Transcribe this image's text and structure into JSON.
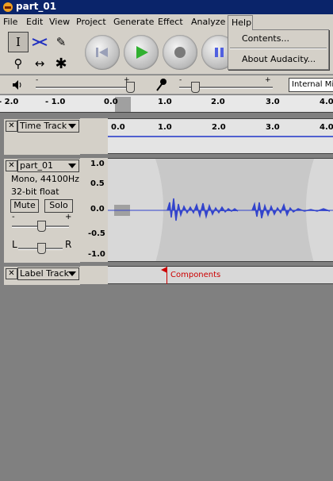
{
  "window": {
    "title": "part_01"
  },
  "menubar": {
    "items": [
      "File",
      "Edit",
      "View",
      "Project",
      "Generate",
      "Effect",
      "Analyze",
      "Help"
    ]
  },
  "help_menu": {
    "items": [
      "Contents...",
      "About Audacity..."
    ]
  },
  "mixer": {
    "output_max_label": "+",
    "output_min_label": "-",
    "input_min_label": "-",
    "input_max_label": "+",
    "input_source": "Internal Mi"
  },
  "ruler": {
    "ticks": [
      "- 2.0",
      "- 1.0",
      "0.0",
      "1.0",
      "2.0",
      "3.0",
      "4.0"
    ]
  },
  "time_track": {
    "name": "Time Track",
    "ticks": [
      "0.0",
      "1.0",
      "2.0",
      "3.0",
      "4.0"
    ]
  },
  "audio_track": {
    "name": "part_01",
    "info_line1": "Mono, 44100Hz",
    "info_line2": "32-bit float",
    "mute_label": "Mute",
    "solo_label": "Solo",
    "gain_min": "-",
    "gain_max": "+",
    "pan_left": "L",
    "pan_right": "R",
    "scale": [
      "1.0",
      "0.5",
      "0.0",
      "-0.5",
      "-1.0"
    ]
  },
  "label_track": {
    "name": "Label Track",
    "label_text": "Components"
  },
  "colors": {
    "title_bar": "#0a246a",
    "waveform": "#3344cc",
    "label_marker": "#cc0000",
    "envelope_bg": "#c8c8c8"
  }
}
